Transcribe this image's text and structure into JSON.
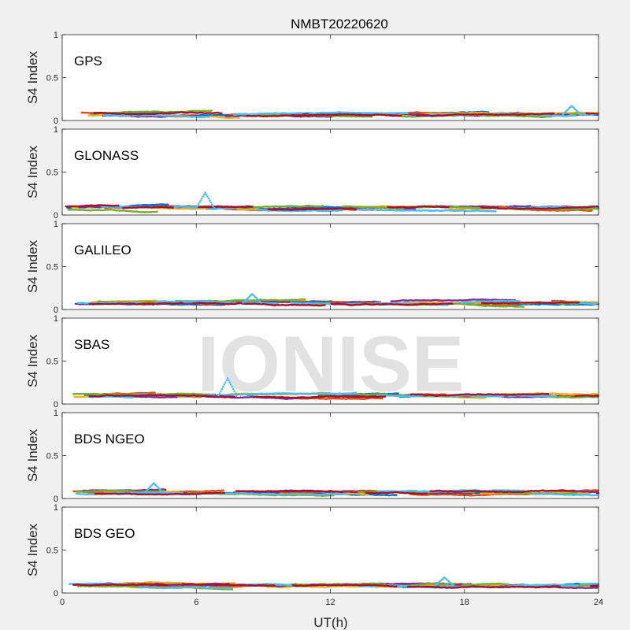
{
  "figure": {
    "title": "NMBT20220620",
    "xlabel": "UT(h)",
    "watermark": "IONISE",
    "background": "#f0f0f0",
    "axes_background": "#ffffff",
    "series_colors": [
      "#0072bd",
      "#d95319",
      "#edb120",
      "#7e2f8e",
      "#77ac30",
      "#4dbeee",
      "#a2142f"
    ]
  },
  "chart_data": [
    {
      "type": "scatter",
      "panel": "GPS",
      "title": "",
      "xlabel": "",
      "ylabel": "S4 Index",
      "xlim": [
        0,
        24
      ],
      "ylim": [
        0,
        1
      ],
      "xticks": [
        0,
        6,
        12,
        18,
        24
      ],
      "yticks": [
        0,
        0.5,
        1
      ],
      "grid": false,
      "series_summary": {
        "baseline_s4": 0.07,
        "max_s4": 0.17,
        "max_at_ut": 22.8,
        "x_range": [
          0,
          24
        ]
      }
    },
    {
      "type": "scatter",
      "panel": "GLONASS",
      "title": "",
      "xlabel": "",
      "ylabel": "S4 Index",
      "xlim": [
        0,
        24
      ],
      "ylim": [
        0,
        1
      ],
      "xticks": [
        0,
        6,
        12,
        18,
        24
      ],
      "yticks": [
        0,
        0.5,
        1
      ],
      "grid": false,
      "series_summary": {
        "baseline_s4": 0.08,
        "max_s4": 0.26,
        "max_at_ut": 6.4,
        "x_range": [
          0,
          24
        ]
      }
    },
    {
      "type": "scatter",
      "panel": "GALILEO",
      "title": "",
      "xlabel": "",
      "ylabel": "S4 Index",
      "xlim": [
        0,
        24
      ],
      "ylim": [
        0,
        1
      ],
      "xticks": [
        0,
        6,
        12,
        18,
        24
      ],
      "yticks": [
        0,
        0.5,
        1
      ],
      "grid": false,
      "series_summary": {
        "baseline_s4": 0.08,
        "max_s4": 0.18,
        "max_at_ut": 8.5,
        "x_range": [
          0,
          24
        ]
      }
    },
    {
      "type": "scatter",
      "panel": "SBAS",
      "title": "",
      "xlabel": "",
      "ylabel": "S4 Index",
      "xlim": [
        0,
        24
      ],
      "ylim": [
        0,
        1
      ],
      "xticks": [
        0,
        6,
        12,
        18,
        24
      ],
      "yticks": [
        0,
        0.5,
        1
      ],
      "grid": false,
      "series_summary": {
        "baseline_s4": 0.1,
        "max_s4": 0.3,
        "max_at_ut": 7.4,
        "x_range": [
          0,
          24
        ]
      }
    },
    {
      "type": "scatter",
      "panel": "BDS NGEO",
      "title": "",
      "xlabel": "",
      "ylabel": "S4 Index",
      "xlim": [
        0,
        24
      ],
      "ylim": [
        0,
        1
      ],
      "xticks": [
        0,
        6,
        12,
        18,
        24
      ],
      "yticks": [
        0,
        0.5,
        1
      ],
      "grid": false,
      "series_summary": {
        "baseline_s4": 0.07,
        "max_s4": 0.18,
        "max_at_ut": 4.1,
        "x_range": [
          0,
          24
        ]
      }
    },
    {
      "type": "scatter",
      "panel": "BDS GEO",
      "title": "",
      "xlabel": "UT(h)",
      "ylabel": "S4 Index",
      "xlim": [
        0,
        24
      ],
      "ylim": [
        0,
        1
      ],
      "xticks": [
        0,
        6,
        12,
        18,
        24
      ],
      "yticks": [
        0,
        0.5,
        1
      ],
      "grid": false,
      "series_summary": {
        "baseline_s4": 0.09,
        "max_s4": 0.18,
        "max_at_ut": 17.1,
        "x_range": [
          0,
          24
        ]
      }
    }
  ]
}
